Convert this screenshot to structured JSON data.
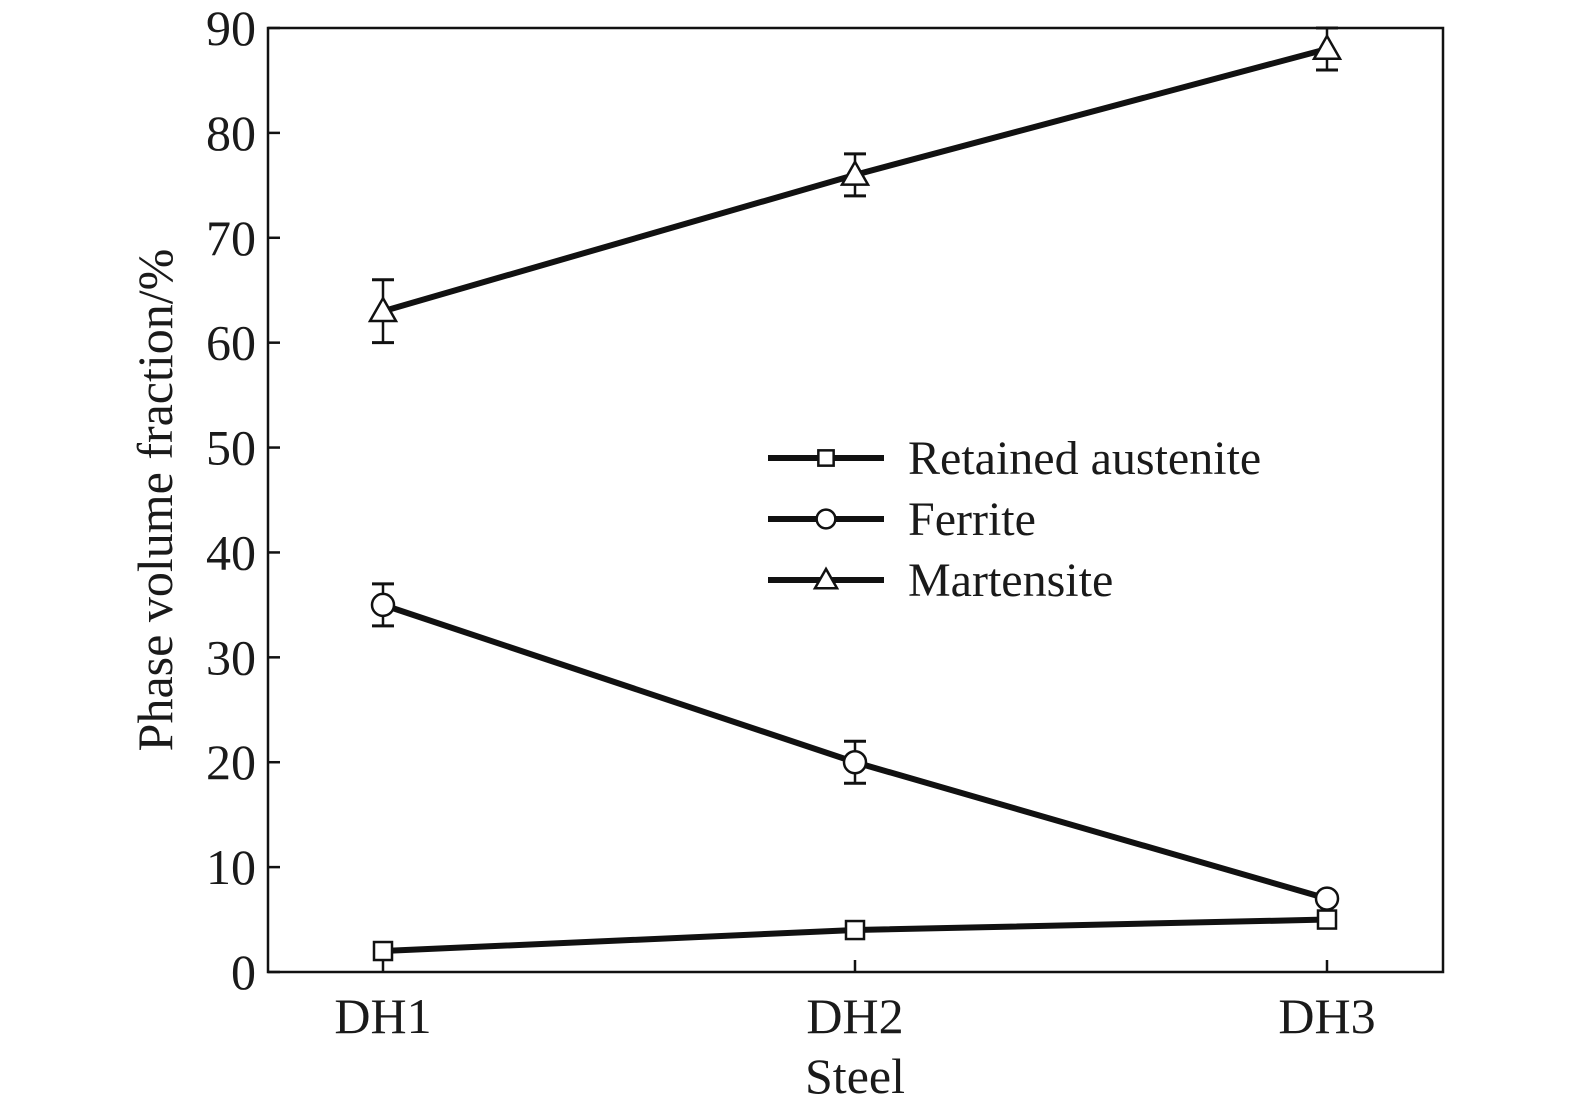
{
  "chart_data": {
    "type": "line",
    "xlabel": "Steel",
    "ylabel": "Phase volume fraction/%",
    "categories": [
      "DH1",
      "DH2",
      "DH3"
    ],
    "ylim": [
      0,
      90
    ],
    "yticks": [
      "0",
      "10",
      "20",
      "30",
      "40",
      "50",
      "60",
      "70",
      "80",
      "90"
    ],
    "grid": false,
    "legend_position": "center-right",
    "series": [
      {
        "name": "Retained austenite",
        "marker": "square",
        "values": [
          2,
          4,
          5
        ],
        "errors": [
          0,
          0,
          0
        ]
      },
      {
        "name": "Ferrite",
        "marker": "circle",
        "values": [
          35,
          20,
          7
        ],
        "errors": [
          2,
          2,
          0
        ]
      },
      {
        "name": "Martensite",
        "marker": "triangle",
        "values": [
          63,
          76,
          88
        ],
        "errors": [
          3,
          2,
          2
        ]
      }
    ],
    "colors": {
      "line": "#111111",
      "marker_fill": "#ffffff",
      "text": "#1a1a1a"
    }
  }
}
